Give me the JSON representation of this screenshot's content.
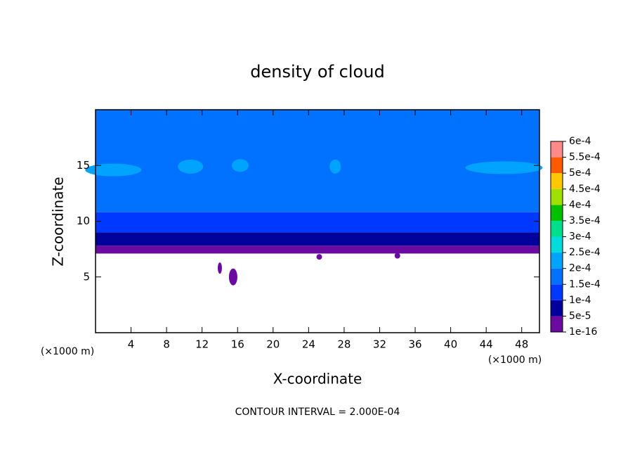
{
  "chart_data": {
    "type": "contour",
    "title": "density of cloud",
    "x_label": "X-coordinate",
    "y_label": "Z-coordinate",
    "x_unit": "(×1000 m)",
    "annotation": "CONTOUR INTERVAL = 2.000E-04",
    "xlim": [
      0,
      50
    ],
    "xticks": [
      4,
      8,
      12,
      16,
      20,
      24,
      28,
      32,
      36,
      40,
      44,
      48
    ],
    "ylim": [
      0,
      20
    ],
    "yticks": [
      5,
      10,
      15
    ],
    "colorbar": {
      "ticks": [
        {
          "value": 1e-16,
          "label": "1e-16"
        },
        {
          "value": 5e-05,
          "label": "5e-5"
        },
        {
          "value": 0.0001,
          "label": "1e-4"
        },
        {
          "value": 0.00015,
          "label": "1.5e-4"
        },
        {
          "value": 0.0002,
          "label": "2e-4"
        },
        {
          "value": 0.00025,
          "label": "2.5e-4"
        },
        {
          "value": 0.0003,
          "label": "3e-4"
        },
        {
          "value": 0.00035,
          "label": "3.5e-4"
        },
        {
          "value": 0.0004,
          "label": "4e-4"
        },
        {
          "value": 0.00045,
          "label": "4.5e-4"
        },
        {
          "value": 0.0005,
          "label": "5e-4"
        },
        {
          "value": 0.00055,
          "label": "5.5e-4"
        },
        {
          "value": 0.0006,
          "label": "6e-4"
        }
      ],
      "colors": [
        "#6a0aa0",
        "#00009a",
        "#0038ff",
        "#0072ff",
        "#00a4ff",
        "#00dcdc",
        "#00e08c",
        "#00c000",
        "#a0e000",
        "#ffc800",
        "#ff5a00",
        "#ff8a8a"
      ]
    }
  }
}
